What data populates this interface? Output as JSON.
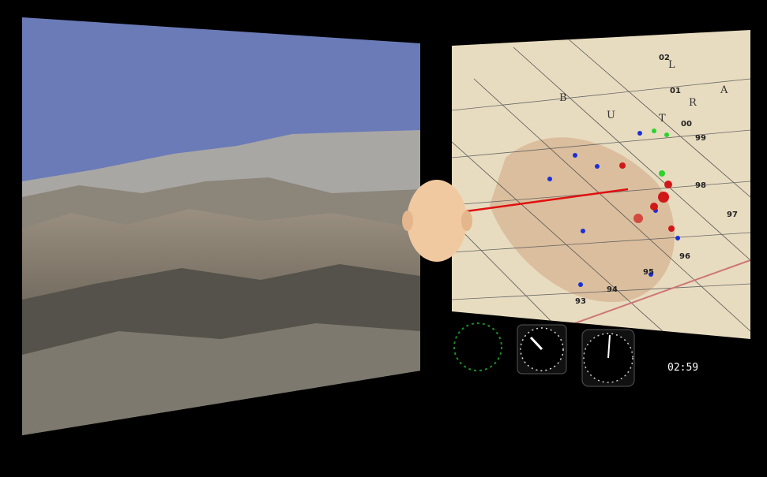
{
  "timer": "02:59",
  "map": {
    "grid_labels": [
      "02",
      "01",
      "00",
      "99",
      "98",
      "97",
      "96",
      "95",
      "94",
      "93"
    ],
    "letters": [
      "B",
      "U",
      "T",
      "R",
      "A",
      "L"
    ]
  }
}
